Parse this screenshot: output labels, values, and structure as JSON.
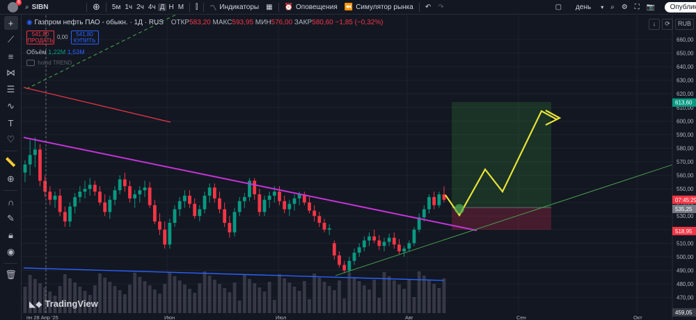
{
  "topbar": {
    "symbol": "SIBN",
    "avatar_badge": "6",
    "timeframes": [
      "5м",
      "1ч",
      "2ч",
      "4ч",
      "Д",
      "Н",
      "М"
    ],
    "active_timeframe": "Д",
    "indicators_label": "Индикаторы",
    "alerts_label": "Оповещения",
    "replay_label": "Симулятор рынка",
    "interval_select": "день",
    "publish_label": "Опублик"
  },
  "legend": {
    "title": "Газпром нефть ПАО - обыкн. · 1Д · RUS",
    "open_label": "ОТКР",
    "open": "583,20",
    "high_label": "МАКС",
    "high": "593,95",
    "low_label": "МИН",
    "low": "576,00",
    "close_label": "ЗАКР",
    "close": "580,60",
    "change": "−1,85 (−0,32%)"
  },
  "trade": {
    "sell_price": "541,80",
    "sell_label": "ПРОДАТЬ",
    "spread": "0,00",
    "buy_price": "541,80",
    "buy_label": "КУПИТЬ"
  },
  "volume_legend": {
    "label": "Объём",
    "v1": "1,22M",
    "v2": "1,53M"
  },
  "indicator_legend": "holod TREND",
  "watermark": "TradingView",
  "currency": "RUB",
  "colors": {
    "up": "#089981",
    "down": "#f23645",
    "bg": "#131722",
    "trendline_purple": "#c534d8",
    "trendline_red": "#f23645",
    "channel_green": "#4caf50",
    "arrow_yellow": "#e8e33a",
    "volume_ma": "#2962ff"
  },
  "chart_data": {
    "type": "candlestick",
    "y_axis": {
      "min": 459.05,
      "max": 665,
      "ticks": [
        660,
        650,
        640,
        630,
        620,
        610,
        600,
        590,
        580,
        570,
        560,
        550,
        540,
        530,
        520,
        510,
        500,
        490,
        480,
        470
      ]
    },
    "x_axis_labels": [
      "пн 28 Апр '25",
      "Июн",
      "Июл",
      "Авг",
      "Сен",
      "Окт"
    ],
    "price_labels": [
      {
        "text": "613,60",
        "value": 613.6,
        "color": "#089981"
      },
      {
        "text": "07:45:29",
        "value": 542,
        "color": "#f23645"
      },
      {
        "text": "535,25",
        "value": 535.25,
        "color": "#787b86"
      },
      {
        "text": "518,95",
        "value": 518.95,
        "color": "#f23645"
      },
      {
        "text": "459,05",
        "value": 459.05,
        "color": "#363a45"
      }
    ],
    "candles": [
      [
        562,
        571,
        555,
        568
      ],
      [
        568,
        586,
        560,
        575
      ],
      [
        575,
        588,
        566,
        579
      ],
      [
        579,
        583,
        552,
        556
      ],
      [
        556,
        560,
        544,
        548
      ],
      [
        548,
        552,
        538,
        542
      ],
      [
        542,
        548,
        536,
        545
      ],
      [
        545,
        550,
        530,
        533
      ],
      [
        533,
        537,
        522,
        526
      ],
      [
        526,
        540,
        522,
        537
      ],
      [
        537,
        547,
        532,
        544
      ],
      [
        544,
        552,
        540,
        548
      ],
      [
        548,
        556,
        543,
        550
      ],
      [
        550,
        558,
        545,
        553
      ],
      [
        553,
        556,
        545,
        548
      ],
      [
        548,
        552,
        538,
        540
      ],
      [
        540,
        546,
        530,
        533
      ],
      [
        533,
        545,
        528,
        542
      ],
      [
        542,
        552,
        538,
        549
      ],
      [
        549,
        560,
        546,
        557
      ],
      [
        557,
        562,
        548,
        552
      ],
      [
        552,
        556,
        540,
        543
      ],
      [
        543,
        549,
        536,
        546
      ],
      [
        546,
        552,
        540,
        549
      ],
      [
        549,
        556,
        544,
        551
      ],
      [
        551,
        555,
        536,
        538
      ],
      [
        538,
        542,
        524,
        526
      ],
      [
        526,
        532,
        516,
        520
      ],
      [
        520,
        526,
        506,
        509
      ],
      [
        509,
        528,
        506,
        525
      ],
      [
        525,
        538,
        522,
        535
      ],
      [
        535,
        544,
        530,
        541
      ],
      [
        541,
        549,
        536,
        545
      ],
      [
        545,
        549,
        536,
        539
      ],
      [
        539,
        543,
        528,
        530
      ],
      [
        530,
        538,
        526,
        535
      ],
      [
        535,
        548,
        532,
        545
      ],
      [
        545,
        554,
        540,
        551
      ],
      [
        551,
        554,
        540,
        543
      ],
      [
        543,
        548,
        532,
        535
      ],
      [
        535,
        540,
        522,
        525
      ],
      [
        525,
        530,
        514,
        518
      ],
      [
        518,
        536,
        515,
        533
      ],
      [
        533,
        544,
        530,
        541
      ],
      [
        541,
        547,
        536,
        544
      ],
      [
        544,
        558,
        541,
        556
      ],
      [
        556,
        558,
        542,
        546
      ],
      [
        546,
        550,
        530,
        533
      ],
      [
        533,
        545,
        530,
        542
      ],
      [
        542,
        548,
        536,
        545
      ],
      [
        545,
        552,
        540,
        548
      ],
      [
        548,
        552,
        538,
        541
      ],
      [
        541,
        545,
        532,
        535
      ],
      [
        535,
        542,
        530,
        539
      ],
      [
        539,
        546,
        534,
        543
      ],
      [
        543,
        548,
        538,
        546
      ],
      [
        546,
        548,
        538,
        540
      ],
      [
        540,
        544,
        532,
        534
      ],
      [
        534,
        538,
        526,
        530
      ],
      [
        530,
        533,
        522,
        525
      ],
      [
        525,
        528,
        518,
        520
      ],
      [
        520,
        524,
        516,
        521
      ],
      [
        510,
        512,
        498,
        501
      ],
      [
        501,
        504,
        492,
        494
      ],
      [
        494,
        497,
        488,
        490
      ],
      [
        490,
        500,
        488,
        497
      ],
      [
        497,
        506,
        494,
        503
      ],
      [
        503,
        510,
        500,
        507
      ],
      [
        507,
        515,
        504,
        512
      ],
      [
        512,
        518,
        508,
        515
      ],
      [
        515,
        520,
        510,
        512
      ],
      [
        512,
        516,
        505,
        508
      ],
      [
        508,
        514,
        504,
        511
      ],
      [
        511,
        517,
        508,
        514
      ],
      [
        514,
        518,
        506,
        509
      ],
      [
        509,
        513,
        502,
        504
      ],
      [
        504,
        508,
        500,
        506
      ],
      [
        506,
        512,
        504,
        510
      ],
      [
        510,
        522,
        508,
        520
      ],
      [
        520,
        532,
        518,
        529
      ],
      [
        529,
        538,
        526,
        535
      ],
      [
        535,
        546,
        532,
        544
      ],
      [
        544,
        548,
        535,
        538
      ],
      [
        538,
        548,
        536,
        546
      ],
      [
        546,
        552,
        540,
        542
      ]
    ],
    "volume_bars": 85
  }
}
